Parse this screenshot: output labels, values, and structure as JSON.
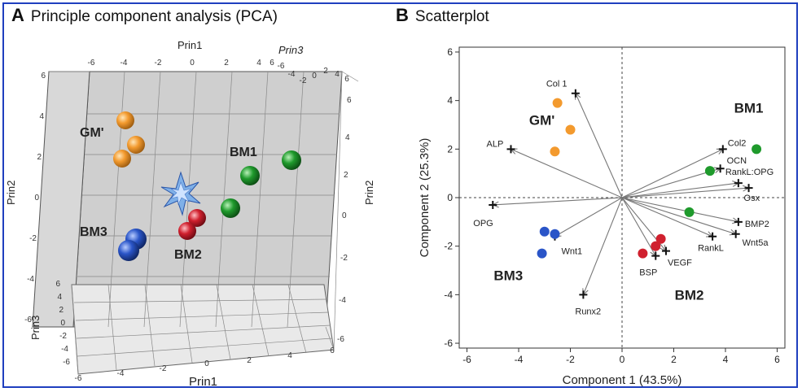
{
  "panelA": {
    "letter": "A",
    "title": "Principle component analysis (PCA)",
    "axis_labels": {
      "prin1_top": "Prin1",
      "prin1_bottom": "Prin1",
      "prin2_left": "Prin2",
      "prin2_right": "Prin2",
      "prin3_top": "Prin3",
      "prin3_left": "Prin3"
    },
    "top_ticks_prin1": [
      "-6",
      "-4",
      "-2",
      "0",
      "2",
      "4",
      "6"
    ],
    "top_ticks_prin3": [
      "-6",
      "-4",
      "-2",
      "0",
      "2",
      "4",
      "6"
    ],
    "left_ticks_prin2": [
      "6",
      "4",
      "2",
      "0",
      "-2",
      "-4",
      "-6"
    ],
    "right_ticks_prin2": [
      "6",
      "4",
      "2",
      "0",
      "-2",
      "-4",
      "-6"
    ],
    "bottom_ticks_prin1": [
      "-6",
      "-4",
      "-2",
      "0",
      "2",
      "4",
      "6"
    ],
    "left_ticks_prin3": [
      "6",
      "4",
      "2",
      "0",
      "-2",
      "-4",
      "-6"
    ],
    "group_labels": [
      "GM'",
      "BM1",
      "BM3",
      "BM2"
    ],
    "colors": {
      "orange": "#f39a2e",
      "green": "#1f9a2c",
      "blue": "#2a55c8",
      "red": "#d0202e",
      "star": "#7fb0e8"
    }
  },
  "chart_data": {
    "type": "scatter",
    "letter": "B",
    "title": "Scatterplot",
    "xlabel": "Component 1 (43.5%)",
    "ylabel": "Component 2 (25.3%)",
    "xlim": [
      -6.3,
      6.3
    ],
    "ylim": [
      -6.2,
      6.2
    ],
    "xticks": [
      -6,
      -4,
      -2,
      0,
      2,
      4,
      6
    ],
    "yticks": [
      -6,
      -4,
      -2,
      0,
      2,
      4,
      6
    ],
    "reference_lines": {
      "x": 0,
      "y": 0,
      "style": "dashed"
    },
    "series": [
      {
        "color": "#f39a2e",
        "points": [
          [
            -2.5,
            3.9
          ],
          [
            -2.0,
            2.8
          ],
          [
            -2.6,
            1.9
          ]
        ]
      },
      {
        "color": "#1f9a2c",
        "points": [
          [
            5.2,
            2.0
          ],
          [
            3.4,
            1.1
          ],
          [
            2.6,
            -0.6
          ]
        ]
      },
      {
        "color": "#d0202e",
        "points": [
          [
            1.5,
            -1.7
          ],
          [
            1.3,
            -2.0
          ],
          [
            0.8,
            -2.3
          ]
        ]
      },
      {
        "color": "#2a55c8",
        "points": [
          [
            -3.0,
            -1.4
          ],
          [
            -2.6,
            -1.5
          ],
          [
            -3.1,
            -2.3
          ]
        ]
      }
    ],
    "loadings": [
      {
        "label": "Col 1",
        "x": -1.8,
        "y": 4.3
      },
      {
        "label": "ALP",
        "x": -4.3,
        "y": 2.0
      },
      {
        "label": "OPG",
        "x": -5.0,
        "y": -0.3
      },
      {
        "label": "Wnt1",
        "x": -2.6,
        "y": -1.6
      },
      {
        "label": "Runx2",
        "x": -1.5,
        "y": -4.0
      },
      {
        "label": "Col2",
        "x": 3.9,
        "y": 2.0
      },
      {
        "label": "OCN",
        "x": 3.8,
        "y": 1.2
      },
      {
        "label": "RankL:OPG",
        "x": 4.5,
        "y": 0.6
      },
      {
        "label": "Osx",
        "x": 4.9,
        "y": 0.4
      },
      {
        "label": "BMP2",
        "x": 4.5,
        "y": -1.0
      },
      {
        "label": "Wnt5a",
        "x": 4.4,
        "y": -1.5
      },
      {
        "label": "RankL",
        "x": 3.5,
        "y": -1.6
      },
      {
        "label": "VEGF",
        "x": 1.7,
        "y": -2.2
      },
      {
        "label": "BSP",
        "x": 1.3,
        "y": -2.4
      }
    ],
    "group_labels": [
      {
        "label": "BM1",
        "x": 4.9,
        "y": 3.5
      },
      {
        "label": "GM'",
        "x": -3.1,
        "y": 3.0
      },
      {
        "label": "BM3",
        "x": -4.4,
        "y": -3.4
      },
      {
        "label": "BM2",
        "x": 2.6,
        "y": -4.2
      }
    ]
  }
}
